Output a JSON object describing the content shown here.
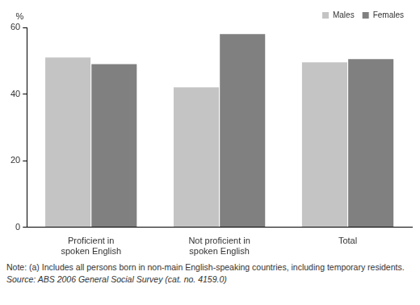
{
  "chart_data": {
    "type": "bar",
    "y_label": "%",
    "categories": [
      "Proficient in\nspoken English",
      "Not proficient in\nspoken English",
      "Total"
    ],
    "series": [
      {
        "name": "Males",
        "color": "#c4c4c4",
        "values": [
          51,
          42,
          49.5
        ]
      },
      {
        "name": "Females",
        "color": "#808080",
        "values": [
          49,
          58,
          50.5
        ]
      }
    ],
    "ylim": [
      0,
      60
    ],
    "yticks": [
      0,
      20,
      40,
      60
    ],
    "grid": true,
    "legend": "top-right",
    "annotations": [
      "Note: (a) Includes all persons born in non-main English-speaking countries, including temporary residents.",
      "Source: ABS 2006 General Social Survey (cat. no. 4159.0)"
    ]
  }
}
